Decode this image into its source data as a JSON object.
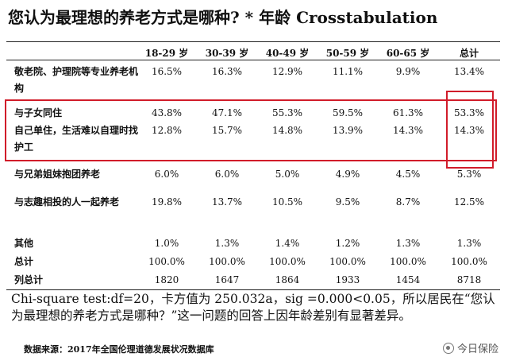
{
  "title": "您认为最理想的养老方式是哪种? * 年龄 Crosstabulation",
  "columns": [
    "18-29 岁",
    "30-39 岁",
    "40-49 岁",
    "50-59 岁",
    "60-65 岁",
    "总计"
  ],
  "rows": [
    {
      "label": "敬老院、护理院等专业养老机构",
      "values": [
        "16.5%",
        "16.3%",
        "12.9%",
        "11.1%",
        "9.9%",
        "13.4%"
      ]
    },
    {
      "label": "与子女同住",
      "values": [
        "43.8%",
        "47.1%",
        "55.3%",
        "59.5%",
        "61.3%",
        "53.3%"
      ]
    },
    {
      "label": "自己单住，生活难以自理时找护工",
      "values": [
        "12.8%",
        "15.7%",
        "14.8%",
        "13.9%",
        "14.3%",
        "14.3%"
      ]
    },
    {
      "label": "与兄弟姐妹抱团养老",
      "values": [
        "6.0%",
        "6.0%",
        "5.0%",
        "4.9%",
        "4.5%",
        "5.3%"
      ]
    },
    {
      "label": "与志趣相投的人一起养老",
      "values": [
        "19.8%",
        "13.7%",
        "10.5%",
        "9.5%",
        "8.7%",
        "12.5%"
      ]
    },
    {
      "label": "其他",
      "values": [
        "1.0%",
        "1.3%",
        "1.4%",
        "1.2%",
        "1.3%",
        "1.3%"
      ]
    },
    {
      "label": "总计",
      "values": [
        "100.0%",
        "100.0%",
        "100.0%",
        "100.0%",
        "100.0%",
        "100.0%"
      ]
    },
    {
      "label": "列总计",
      "values": [
        "1820",
        "1647",
        "1864",
        "1933",
        "1454",
        "8718"
      ]
    }
  ],
  "note": "Chi-square test:df=20，卡方值为 250.032a，sig =0.000<0.05，所以居民在“您认为最理想的养老方式是哪种？”这一问题的回答上因年龄差别有显著差异。",
  "source": "数据来源：2017年全国伦理道德发展状况数据库",
  "watermark": "今日保险",
  "colors": {
    "highlight_box": "#d11c2a"
  }
}
